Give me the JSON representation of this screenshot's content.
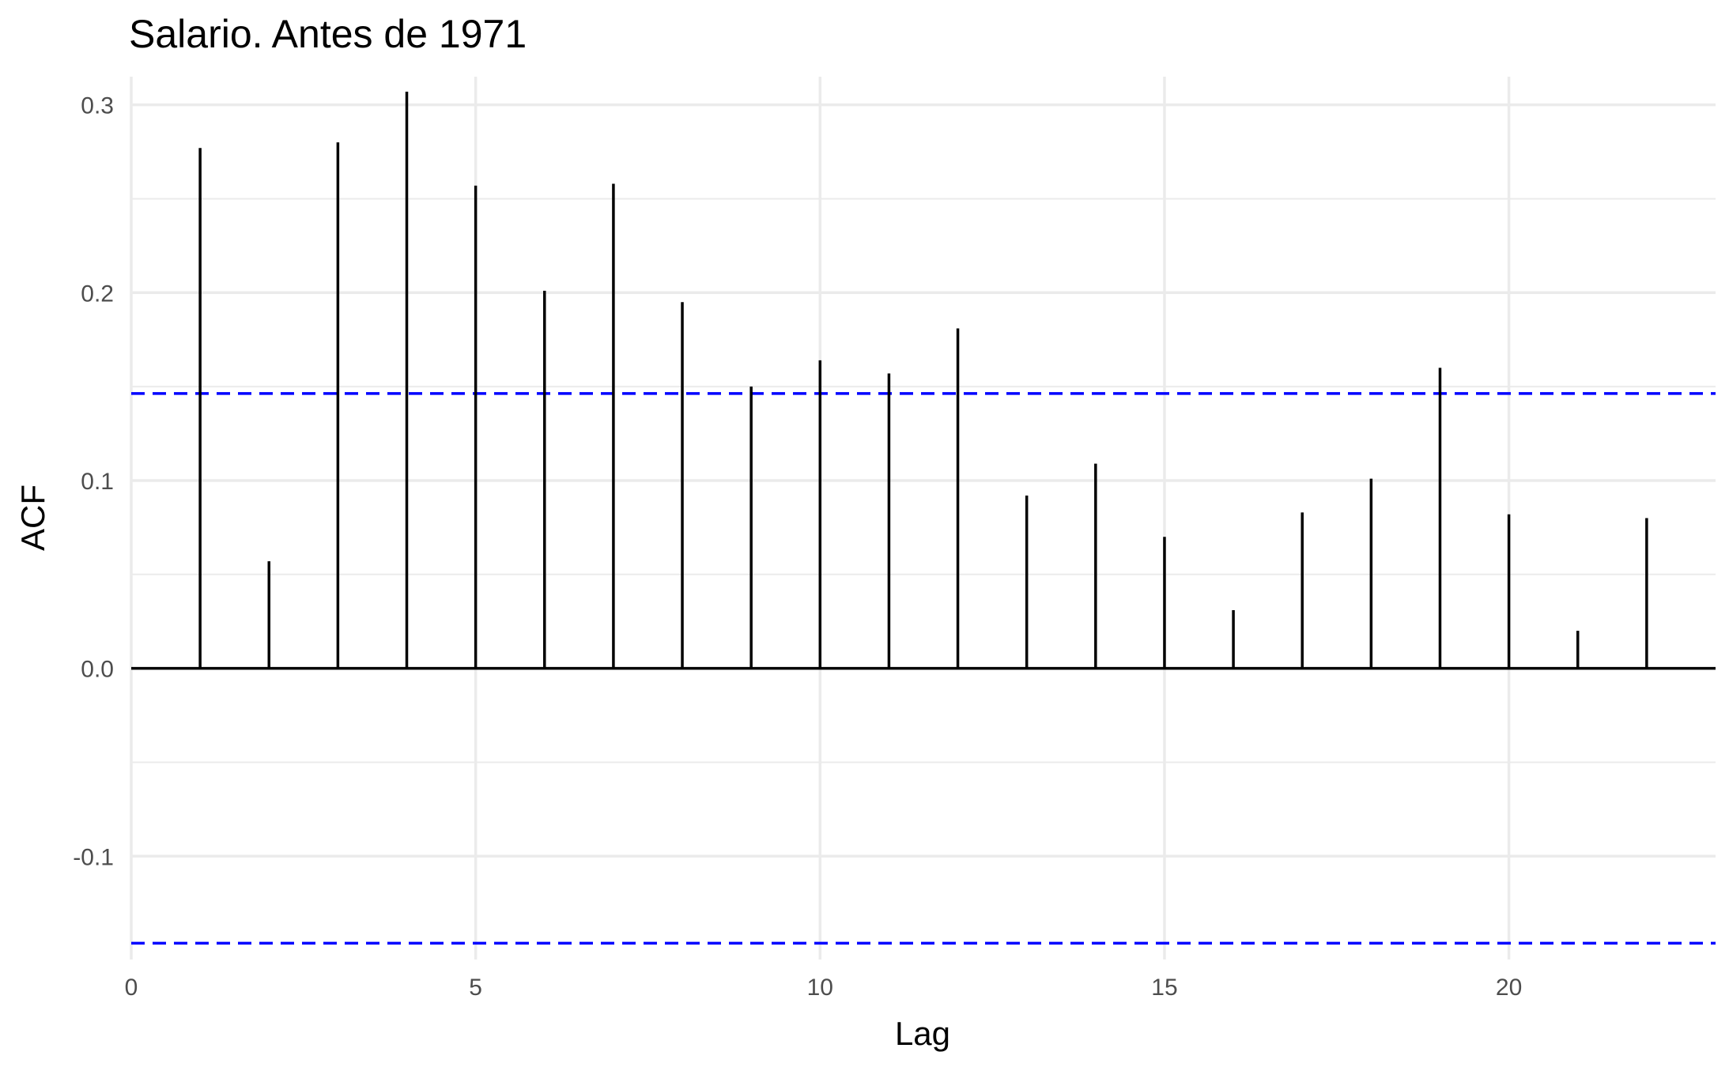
{
  "chart_data": {
    "type": "bar",
    "title": "Salario. Antes de 1971",
    "xlabel": "Lag",
    "ylabel": "ACF",
    "x": [
      1,
      2,
      3,
      4,
      5,
      6,
      7,
      8,
      9,
      10,
      11,
      12,
      13,
      14,
      15,
      16,
      17,
      18,
      19,
      20,
      21,
      22
    ],
    "values": [
      0.277,
      0.057,
      0.28,
      0.307,
      0.257,
      0.201,
      0.258,
      0.195,
      0.15,
      0.164,
      0.157,
      0.181,
      0.092,
      0.109,
      0.07,
      0.031,
      0.083,
      0.101,
      0.16,
      0.082,
      0.02,
      0.08
    ],
    "confidence_bound": 0.1463,
    "xlim": [
      0,
      23
    ],
    "ylim": [
      -0.155,
      0.315
    ],
    "x_ticks": [
      0,
      5,
      10,
      15,
      20
    ],
    "x_tick_labels": [
      "0",
      "5",
      "10",
      "15",
      "20"
    ],
    "y_ticks": [
      -0.1,
      0.0,
      0.1,
      0.2,
      0.3
    ],
    "y_tick_labels": [
      "-0.1",
      "0.0",
      "0.1",
      "0.2",
      "0.3"
    ],
    "grid": true,
    "colors": {
      "bars": "#000000",
      "bound_lines": "#0000ff",
      "grid": "#ebebeb",
      "zero_line": "#000000"
    }
  }
}
